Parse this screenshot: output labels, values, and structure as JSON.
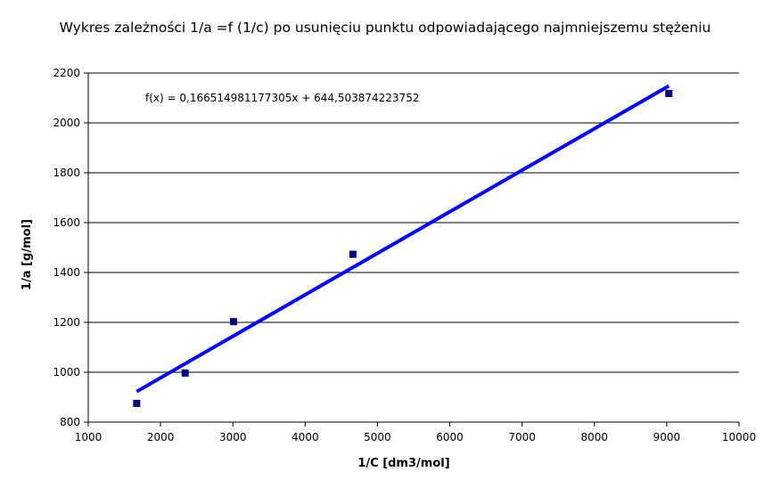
{
  "chart_data": {
    "type": "scatter",
    "title": "Wykres zależności 1/a =f (1/c) po usunięciu punktu odpowiadającego najmniejszemu stężeniu",
    "xlabel": "1/C [dm3/mol]",
    "ylabel": "1/a [g/mol]",
    "xlim": [
      1000,
      10000
    ],
    "ylim": [
      800,
      2200
    ],
    "x_ticks": [
      1000,
      2000,
      3000,
      4000,
      5000,
      6000,
      7000,
      8000,
      9000,
      10000
    ],
    "y_ticks": [
      800,
      1000,
      1200,
      1400,
      1600,
      1800,
      2000,
      2200
    ],
    "grid": "horizontal",
    "legend": "none",
    "series": [
      {
        "marker": "square",
        "color": "#000080",
        "points": [
          {
            "x": 1670,
            "y": 875
          },
          {
            "x": 2340,
            "y": 997
          },
          {
            "x": 3010,
            "y": 1203
          },
          {
            "x": 4660,
            "y": 1473
          },
          {
            "x": 9030,
            "y": 2118
          }
        ]
      }
    ],
    "trendline": {
      "color": "#0000ff",
      "slope": 0.166514981177305,
      "intercept": 644.503874223752,
      "x_range": [
        1670,
        9030
      ],
      "equation_label": "f(x) = 0,166514981177305x + 644,503874223752"
    }
  }
}
